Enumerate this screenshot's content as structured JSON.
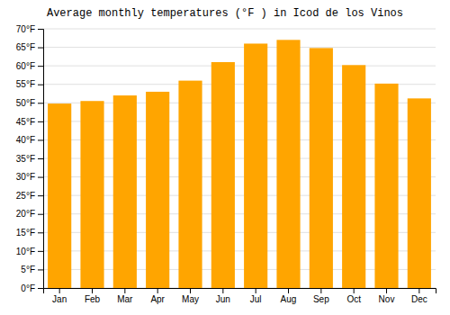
{
  "chart_data": {
    "type": "bar",
    "title": "Average monthly temperatures (°F ) in Icod de los Vinos",
    "categories": [
      "Jan",
      "Feb",
      "Mar",
      "Apr",
      "May",
      "Jun",
      "Jul",
      "Aug",
      "Sep",
      "Oct",
      "Nov",
      "Dec"
    ],
    "values": [
      49.8,
      50.5,
      52.0,
      53.0,
      56.0,
      61.0,
      66.0,
      67.0,
      64.8,
      60.2,
      55.2,
      51.2
    ],
    "color": "#FFA500",
    "ylim": [
      0,
      70
    ],
    "yticks": [
      {
        "value": 0,
        "label": "0°F"
      },
      {
        "value": 5,
        "label": "5°F"
      },
      {
        "value": 10,
        "label": "10°F"
      },
      {
        "value": 15,
        "label": "15°F"
      },
      {
        "value": 20,
        "label": "20°F"
      },
      {
        "value": 25,
        "label": "25°F"
      },
      {
        "value": 30,
        "label": "30°F"
      },
      {
        "value": 35,
        "label": "35°F"
      },
      {
        "value": 40,
        "label": "40°F"
      },
      {
        "value": 45,
        "label": "45°F"
      },
      {
        "value": 50,
        "label": "50°F"
      },
      {
        "value": 55,
        "label": "55°F"
      },
      {
        "value": 60,
        "label": "60°F"
      },
      {
        "value": 65,
        "label": "65°F"
      },
      {
        "value": 70,
        "label": "70°F"
      }
    ],
    "grid": true
  }
}
